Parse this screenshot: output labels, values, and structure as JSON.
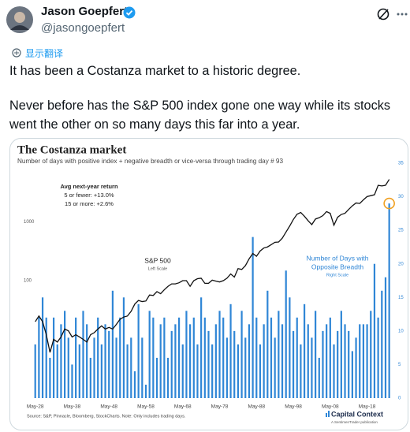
{
  "tweet": {
    "name": "Jason Goepfert",
    "handle": "@jasongoepfert",
    "translate": "显示翻译",
    "paragraphs": [
      "It has been a Costanza market to a historic degree.",
      "Never before has the S&P 500 index gone one way while its stocks went the other on so many days this far into a year."
    ]
  },
  "chart_data": {
    "type": "combo",
    "title": "The Costanza market",
    "subtitle": "Number of days with positive index + negative breadth or vice-versa through trading day # 93",
    "annotations": [
      "Avg next-year return",
      "5 or fewer: +13.0%",
      "15 or more: +2.6%"
    ],
    "series_labels": [
      [
        "S&P 500",
        "Left Scale"
      ],
      [
        "Number of Days with",
        "Opposite Breadth",
        "Right Scale"
      ]
    ],
    "source": "Source: S&P, Pinnacle, Bloomberg, StockCharts. Note: Only includes trading days.",
    "brand": "Capital Context",
    "brand_sub": "A SentimenTrader publication",
    "x": [
      1928,
      1929,
      1930,
      1931,
      1932,
      1933,
      1934,
      1935,
      1936,
      1937,
      1938,
      1939,
      1940,
      1941,
      1942,
      1943,
      1944,
      1945,
      1946,
      1947,
      1948,
      1949,
      1950,
      1951,
      1952,
      1953,
      1954,
      1955,
      1956,
      1957,
      1958,
      1959,
      1960,
      1961,
      1962,
      1963,
      1964,
      1965,
      1966,
      1967,
      1968,
      1969,
      1970,
      1971,
      1972,
      1973,
      1974,
      1975,
      1976,
      1977,
      1978,
      1979,
      1980,
      1981,
      1982,
      1983,
      1984,
      1985,
      1986,
      1987,
      1988,
      1989,
      1990,
      1991,
      1992,
      1993,
      1994,
      1995,
      1996,
      1997,
      1998,
      1999,
      2000,
      2001,
      2002,
      2003,
      2004,
      2005,
      2006,
      2007,
      2008,
      2009,
      2010,
      2011,
      2012,
      2013,
      2014,
      2015,
      2016,
      2017,
      2018,
      2019,
      2020,
      2021,
      2022,
      2023,
      2024
    ],
    "xlim": [
      1925.5,
      2026
    ],
    "xticks": [
      {
        "value": 1928,
        "label": "May-28"
      },
      {
        "value": 1938,
        "label": "May-38"
      },
      {
        "value": 1948,
        "label": "May-48"
      },
      {
        "value": 1958,
        "label": "May-58"
      },
      {
        "value": 1968,
        "label": "May-68"
      },
      {
        "value": 1978,
        "label": "May-78"
      },
      {
        "value": 1988,
        "label": "May-88"
      },
      {
        "value": 1998,
        "label": "May-98"
      },
      {
        "value": 2008,
        "label": "May-08"
      },
      {
        "value": 2018,
        "label": "May-18"
      }
    ],
    "ylim": [
      1,
      10000
    ],
    "y_log": true,
    "yticks": [
      100,
      1000
    ],
    "y2lim": [
      0,
      35
    ],
    "y2ticks": [
      0,
      5,
      10,
      15,
      20,
      25,
      30,
      35
    ],
    "highlight_color": "#f0a020",
    "series": [
      {
        "name": "S&P 500",
        "type": "line",
        "color": "#111111",
        "values": [
          20,
          25,
          20,
          12,
          6,
          10,
          9,
          11,
          15,
          14,
          11,
          12,
          11,
          10,
          9,
          12,
          13,
          15,
          17,
          15,
          16,
          15,
          18,
          22,
          24,
          25,
          30,
          40,
          46,
          44,
          45,
          57,
          56,
          65,
          60,
          70,
          80,
          88,
          88,
          92,
          100,
          100,
          80,
          100,
          108,
          110,
          90,
          90,
          102,
          98,
          95,
          100,
          110,
          130,
          115,
          160,
          155,
          180,
          235,
          290,
          260,
          320,
          360,
          375,
          410,
          450,
          455,
          530,
          670,
          850,
          1100,
          1350,
          1450,
          1250,
          1050,
          900,
          1120,
          1180,
          1280,
          1500,
          1400,
          880,
          1200,
          1340,
          1400,
          1630,
          1880,
          2100,
          2060,
          2380,
          2700,
          2800,
          2900,
          4200,
          4100,
          4200,
          5300
        ]
      },
      {
        "name": "Number of Days with Opposite Breadth",
        "type": "bar",
        "axis": "y2",
        "color": "#2f86d6",
        "values": [
          8,
          12,
          15,
          12,
          6,
          12,
          8,
          11,
          13,
          9,
          5,
          12,
          8,
          13,
          11,
          6,
          9,
          12,
          8,
          11,
          10,
          16,
          9,
          12,
          15,
          8,
          9,
          4,
          14,
          9,
          2,
          13,
          12,
          6,
          11,
          12,
          6,
          10,
          11,
          12,
          8,
          13,
          11,
          12,
          8,
          15,
          12,
          10,
          8,
          11,
          13,
          12,
          9,
          14,
          10,
          8,
          13,
          9,
          11,
          24,
          12,
          8,
          11,
          16,
          12,
          9,
          13,
          11,
          19,
          15,
          10,
          12,
          8,
          14,
          11,
          9,
          13,
          6,
          10,
          11,
          12,
          8,
          10,
          13,
          11,
          10,
          7,
          9,
          11,
          11,
          11,
          13,
          20,
          12,
          16,
          18,
          29
        ]
      }
    ]
  }
}
